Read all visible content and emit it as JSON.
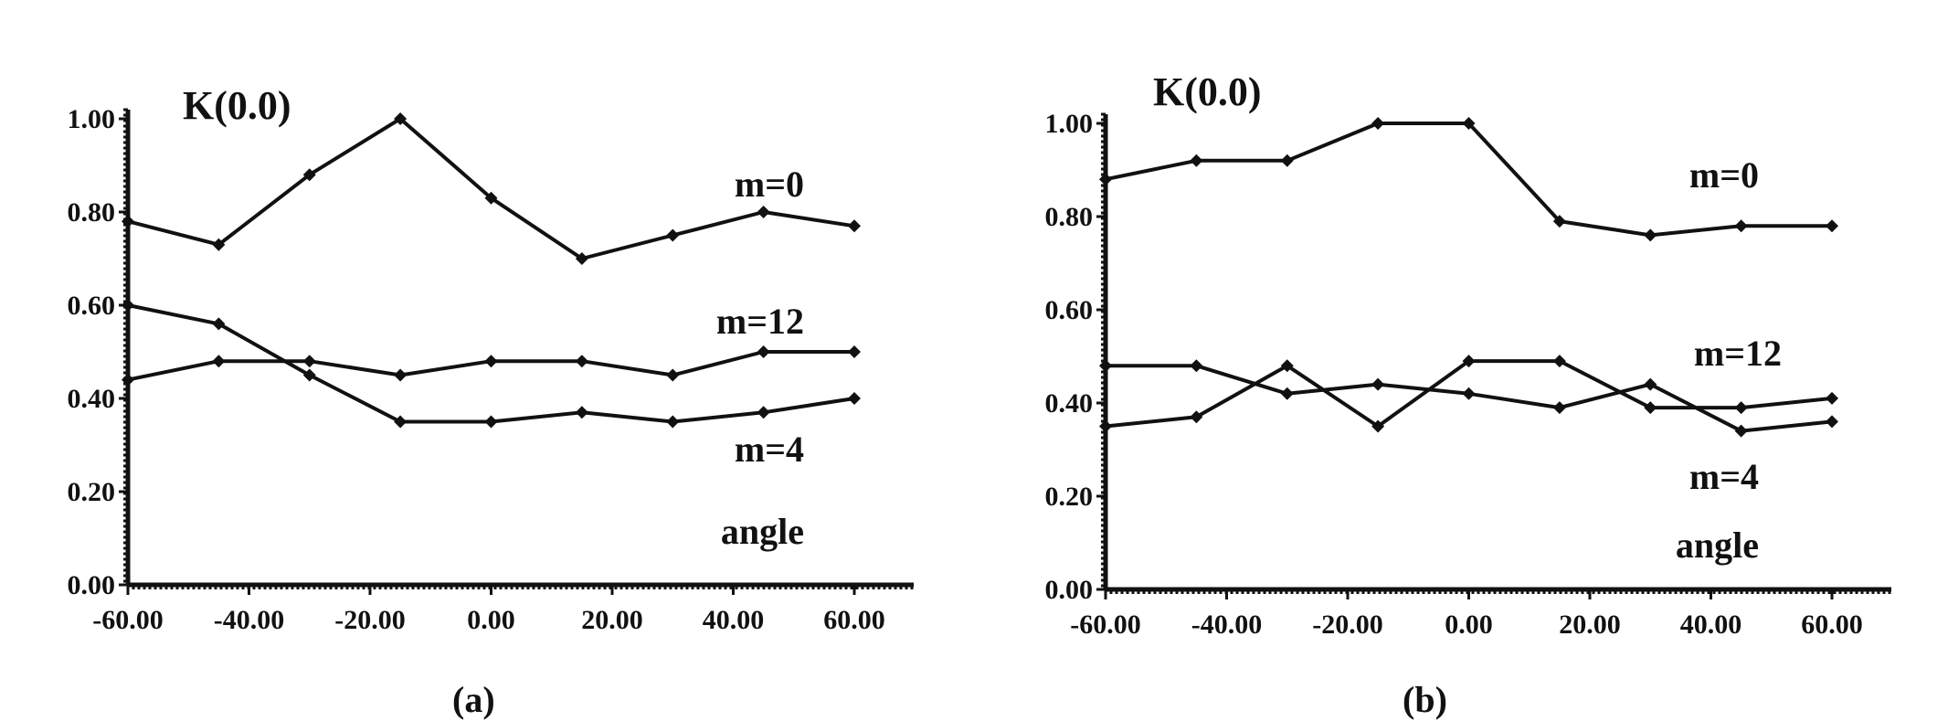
{
  "chart_data": [
    {
      "type": "line",
      "title": "",
      "ylabel": "K(0.0)",
      "xlabel": "angle",
      "xlim": [
        -60,
        60
      ],
      "ylim": [
        0,
        1
      ],
      "x_ticks": [
        "-60.00",
        "-40.00",
        "-20.00",
        "0.00",
        "20.00",
        "40.00",
        "60.00"
      ],
      "y_ticks": [
        "0.00",
        "0.20",
        "0.40",
        "0.60",
        "0.80",
        "1.00"
      ],
      "series": [
        {
          "name": "m=0",
          "x": [
            -60,
            -45,
            -30,
            -15,
            0,
            15,
            30,
            45,
            60
          ],
          "values": [
            0.78,
            0.73,
            0.88,
            1.0,
            0.83,
            0.7,
            0.75,
            0.8,
            0.77
          ]
        },
        {
          "name": "m=12",
          "x": [
            -60,
            -45,
            -30,
            -15,
            0,
            15,
            30,
            45,
            60
          ],
          "values": [
            0.44,
            0.48,
            0.48,
            0.45,
            0.48,
            0.48,
            0.45,
            0.5,
            0.5
          ]
        },
        {
          "name": "m=4",
          "x": [
            -60,
            -45,
            -30,
            -15,
            0,
            15,
            30,
            45,
            60
          ],
          "values": [
            0.6,
            0.56,
            0.45,
            0.35,
            0.35,
            0.37,
            0.35,
            0.37,
            0.4
          ]
        }
      ]
    },
    {
      "type": "line",
      "title": "",
      "ylabel": "K(0.0)",
      "xlabel": "angle",
      "xlim": [
        -60,
        60
      ],
      "ylim": [
        0,
        1
      ],
      "x_ticks": [
        "-60.00",
        "-40.00",
        "-20.00",
        "0.00",
        "20.00",
        "40.00",
        "60.00"
      ],
      "y_ticks": [
        "0.00",
        "0.20",
        "0.40",
        "0.60",
        "0.80",
        "1.00"
      ],
      "series": [
        {
          "name": "m=0",
          "x": [
            -60,
            -45,
            -30,
            -15,
            0,
            15,
            30,
            45,
            60
          ],
          "values": [
            0.88,
            0.92,
            0.92,
            1.0,
            1.0,
            0.79,
            0.76,
            0.78,
            0.78
          ]
        },
        {
          "name": "m=12",
          "x": [
            -60,
            -45,
            -30,
            -15,
            0,
            15,
            30,
            45,
            60
          ],
          "values": [
            0.48,
            0.48,
            0.42,
            0.44,
            0.42,
            0.39,
            0.44,
            0.34,
            0.36
          ]
        },
        {
          "name": "m=4",
          "x": [
            -60,
            -45,
            -30,
            -15,
            0,
            15,
            30,
            45,
            60
          ],
          "values": [
            0.35,
            0.37,
            0.48,
            0.35,
            0.49,
            0.49,
            0.39,
            0.39,
            0.41
          ]
        }
      ]
    }
  ],
  "panel_captions": [
    "(a)",
    "(b)"
  ]
}
